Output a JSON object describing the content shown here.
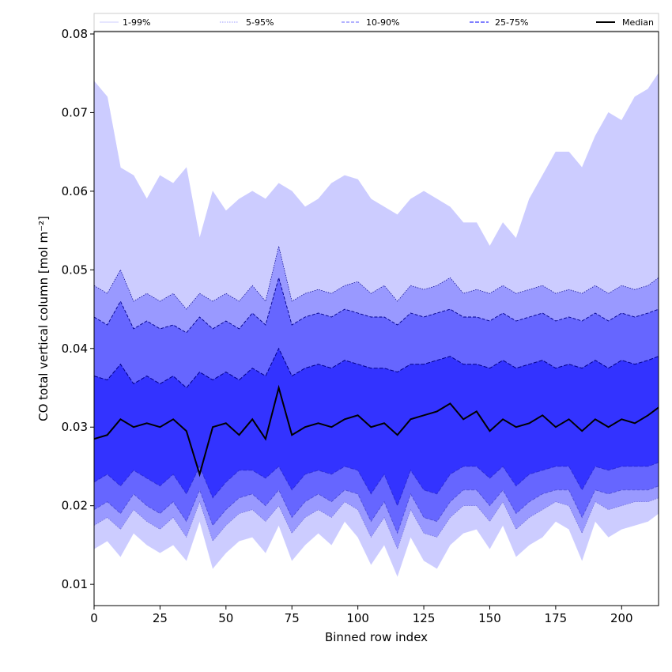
{
  "chart_data": {
    "type": "area",
    "xlabel": "Binned row index",
    "ylabel": "CO total vertical column [mol m⁻²]",
    "xlim": [
      0,
      214
    ],
    "ylim": [
      0.0073,
      0.0803
    ],
    "x_ticks": [
      0,
      25,
      50,
      75,
      100,
      125,
      150,
      175,
      200
    ],
    "y_ticks": [
      0.01,
      0.02,
      0.03,
      0.04,
      0.05,
      0.06,
      0.07,
      0.08
    ],
    "x_tick_labels": [
      "0",
      "25",
      "50",
      "75",
      "100",
      "125",
      "150",
      "175",
      "200"
    ],
    "y_tick_labels": [
      "0.01",
      "0.02",
      "0.03",
      "0.04",
      "0.05",
      "0.06",
      "0.07",
      "0.08"
    ],
    "legend_position": "top, horizontal",
    "legend": [
      {
        "name": "1-99%",
        "color": "#ccccff",
        "style": "solid-thin"
      },
      {
        "name": "5-95%",
        "color": "#9999ff",
        "style": "dotted"
      },
      {
        "name": "10-90%",
        "color": "#6666ff",
        "style": "dashed"
      },
      {
        "name": "25-75%",
        "color": "#3333ff",
        "style": "dashed"
      },
      {
        "name": "Median",
        "color": "#000000",
        "style": "solid-thick"
      }
    ],
    "x_step": 5,
    "series": [
      {
        "name": "1-99%",
        "lower": [
          0.0145,
          0.0155,
          0.0135,
          0.0165,
          0.015,
          0.014,
          0.015,
          0.013,
          0.018,
          0.012,
          0.014,
          0.0155,
          0.016,
          0.014,
          0.0175,
          0.013,
          0.015,
          0.0165,
          0.015,
          0.018,
          0.016,
          0.0125,
          0.015,
          0.011,
          0.016,
          0.013,
          0.012,
          0.015,
          0.0165,
          0.017,
          0.0145,
          0.0175,
          0.0135,
          0.015,
          0.016,
          0.018,
          0.017,
          0.013,
          0.018,
          0.016,
          0.017,
          0.0175,
          0.018,
          0.019
        ],
        "upper": [
          0.074,
          0.072,
          0.063,
          0.062,
          0.059,
          0.062,
          0.061,
          0.063,
          0.054,
          0.06,
          0.0575,
          0.059,
          0.06,
          0.059,
          0.061,
          0.06,
          0.058,
          0.059,
          0.061,
          0.062,
          0.0615,
          0.059,
          0.058,
          0.057,
          0.059,
          0.06,
          0.059,
          0.058,
          0.056,
          0.056,
          0.053,
          0.056,
          0.054,
          0.059,
          0.062,
          0.065,
          0.065,
          0.063,
          0.067,
          0.07,
          0.069,
          0.072,
          0.073,
          0.075
        ]
      },
      {
        "name": "5-95%",
        "lower": [
          0.0175,
          0.0185,
          0.017,
          0.0195,
          0.018,
          0.017,
          0.0185,
          0.016,
          0.0205,
          0.0155,
          0.0175,
          0.019,
          0.0195,
          0.018,
          0.02,
          0.0165,
          0.0185,
          0.0195,
          0.0185,
          0.0205,
          0.0195,
          0.016,
          0.0185,
          0.0145,
          0.0195,
          0.0165,
          0.016,
          0.0185,
          0.02,
          0.02,
          0.018,
          0.0205,
          0.017,
          0.0185,
          0.0195,
          0.0205,
          0.02,
          0.0165,
          0.0205,
          0.0195,
          0.02,
          0.0205,
          0.0205,
          0.021
        ],
        "upper": [
          0.048,
          0.047,
          0.05,
          0.046,
          0.047,
          0.046,
          0.047,
          0.045,
          0.047,
          0.046,
          0.047,
          0.046,
          0.048,
          0.046,
          0.053,
          0.046,
          0.047,
          0.0475,
          0.047,
          0.048,
          0.0485,
          0.047,
          0.048,
          0.046,
          0.048,
          0.0475,
          0.048,
          0.049,
          0.047,
          0.0475,
          0.047,
          0.048,
          0.047,
          0.0475,
          0.048,
          0.047,
          0.0475,
          0.047,
          0.048,
          0.047,
          0.048,
          0.0475,
          0.048,
          0.049
        ]
      },
      {
        "name": "10-90%",
        "lower": [
          0.0195,
          0.0205,
          0.019,
          0.0215,
          0.02,
          0.019,
          0.0205,
          0.018,
          0.022,
          0.0175,
          0.0195,
          0.021,
          0.0215,
          0.02,
          0.022,
          0.0185,
          0.0205,
          0.0215,
          0.0205,
          0.022,
          0.0215,
          0.018,
          0.0205,
          0.0165,
          0.0215,
          0.0185,
          0.018,
          0.0205,
          0.022,
          0.022,
          0.02,
          0.022,
          0.019,
          0.0205,
          0.0215,
          0.022,
          0.022,
          0.0185,
          0.022,
          0.0215,
          0.022,
          0.022,
          0.022,
          0.0225
        ],
        "upper": [
          0.044,
          0.043,
          0.046,
          0.0425,
          0.0435,
          0.0425,
          0.043,
          0.042,
          0.044,
          0.0425,
          0.0435,
          0.0425,
          0.0445,
          0.043,
          0.049,
          0.043,
          0.044,
          0.0445,
          0.044,
          0.045,
          0.0445,
          0.044,
          0.044,
          0.043,
          0.0445,
          0.044,
          0.0445,
          0.045,
          0.044,
          0.044,
          0.0435,
          0.0445,
          0.0435,
          0.044,
          0.0445,
          0.0435,
          0.044,
          0.0435,
          0.0445,
          0.0435,
          0.0445,
          0.044,
          0.0445,
          0.045
        ]
      },
      {
        "name": "25-75%",
        "lower": [
          0.023,
          0.024,
          0.0225,
          0.0245,
          0.0235,
          0.0225,
          0.024,
          0.0215,
          0.025,
          0.021,
          0.023,
          0.0245,
          0.0245,
          0.0235,
          0.025,
          0.022,
          0.024,
          0.0245,
          0.024,
          0.025,
          0.0245,
          0.0215,
          0.024,
          0.02,
          0.0245,
          0.022,
          0.0215,
          0.024,
          0.025,
          0.025,
          0.0235,
          0.025,
          0.0225,
          0.024,
          0.0245,
          0.025,
          0.025,
          0.022,
          0.025,
          0.0245,
          0.025,
          0.025,
          0.025,
          0.0255
        ],
        "upper": [
          0.0365,
          0.036,
          0.038,
          0.0355,
          0.0365,
          0.0355,
          0.0365,
          0.035,
          0.037,
          0.036,
          0.037,
          0.036,
          0.0375,
          0.0365,
          0.04,
          0.0365,
          0.0375,
          0.038,
          0.0375,
          0.0385,
          0.038,
          0.0375,
          0.0375,
          0.037,
          0.038,
          0.038,
          0.0385,
          0.039,
          0.038,
          0.038,
          0.0375,
          0.0385,
          0.0375,
          0.038,
          0.0385,
          0.0375,
          0.038,
          0.0375,
          0.0385,
          0.0375,
          0.0385,
          0.038,
          0.0385,
          0.039
        ]
      },
      {
        "name": "Median",
        "values": [
          0.0285,
          0.029,
          0.031,
          0.03,
          0.0305,
          0.03,
          0.031,
          0.0295,
          0.024,
          0.03,
          0.0305,
          0.029,
          0.031,
          0.0285,
          0.035,
          0.029,
          0.03,
          0.0305,
          0.03,
          0.031,
          0.0315,
          0.03,
          0.0305,
          0.029,
          0.031,
          0.0315,
          0.032,
          0.033,
          0.031,
          0.032,
          0.0295,
          0.031,
          0.03,
          0.0305,
          0.0315,
          0.03,
          0.031,
          0.0295,
          0.031,
          0.03,
          0.031,
          0.0305,
          0.0315,
          0.0325
        ]
      }
    ]
  }
}
